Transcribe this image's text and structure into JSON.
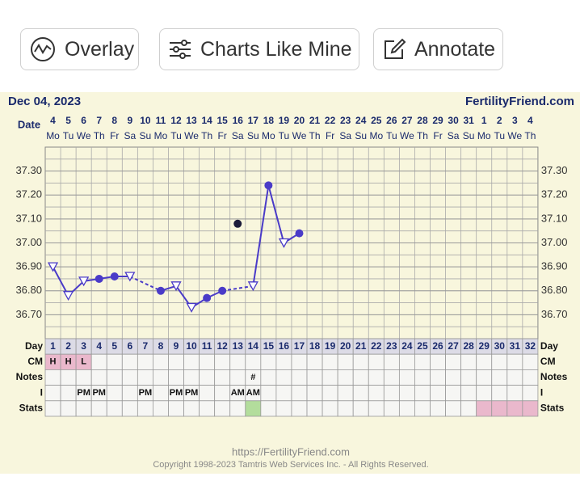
{
  "toolbar": {
    "buttons": [
      "Overlay",
      "Charts Like Mine",
      "Annotate"
    ]
  },
  "chart_data": {
    "type": "line",
    "title": "Dec 04, 2023",
    "brand": "FertilityFriend.com",
    "date_label": "Date",
    "dates": [
      4,
      5,
      6,
      7,
      8,
      9,
      10,
      11,
      12,
      13,
      14,
      15,
      16,
      17,
      18,
      19,
      20,
      21,
      22,
      23,
      24,
      25,
      26,
      27,
      28,
      29,
      30,
      31,
      1,
      2,
      3,
      4
    ],
    "weekdays": [
      "Mo",
      "Tu",
      "We",
      "Th",
      "Fr",
      "Sa",
      "Su",
      "Mo",
      "Tu",
      "We",
      "Th",
      "Fr",
      "Sa",
      "Su",
      "Mo",
      "Tu",
      "We",
      "Th",
      "Fr",
      "Sa",
      "Su",
      "Mo",
      "Tu",
      "We",
      "Th",
      "Fr",
      "Sa",
      "Su",
      "Mo",
      "Tu",
      "We",
      "Th"
    ],
    "day_label": "Day",
    "days": [
      1,
      2,
      3,
      4,
      5,
      6,
      7,
      8,
      9,
      10,
      11,
      12,
      13,
      14,
      15,
      16,
      17,
      18,
      19,
      20,
      21,
      22,
      23,
      24,
      25,
      26,
      27,
      28,
      29,
      30,
      31,
      32
    ],
    "values": [
      36.9,
      36.78,
      36.84,
      36.85,
      36.86,
      36.86,
      null,
      36.8,
      36.82,
      36.73,
      36.77,
      36.8,
      37.08,
      36.82,
      37.24,
      37.0,
      37.04,
      null,
      null,
      null,
      null,
      null,
      null,
      null,
      null,
      null,
      null,
      null,
      null,
      null,
      null,
      null
    ],
    "markers": [
      "triangle",
      "triangle",
      "triangle",
      "dot",
      "dot",
      "triangle",
      null,
      "dot",
      "triangle",
      "triangle",
      "dot",
      "dot",
      "excluded",
      "triangle",
      "dot",
      "triangle",
      "dot",
      null,
      null,
      null,
      null,
      null,
      null,
      null,
      null,
      null,
      null,
      null,
      null,
      null,
      null,
      null
    ],
    "color": "#4a3bc8",
    "excluded_color": "#1c1c3a",
    "ylim": [
      36.6,
      37.4
    ],
    "yticks": [
      {
        "value": 36.7,
        "label": "36.70"
      },
      {
        "value": 36.8,
        "label": "36.80"
      },
      {
        "value": 36.9,
        "label": "36.90"
      },
      {
        "value": 37.0,
        "label": "37.00"
      },
      {
        "value": 37.1,
        "label": "37.10"
      },
      {
        "value": 37.2,
        "label": "37.20"
      },
      {
        "value": 37.3,
        "label": "37.30"
      }
    ],
    "grid": true,
    "rows": [
      {
        "label": "CM",
        "color": "#eab8cc",
        "values": [
          "H",
          "H",
          "L",
          null,
          null,
          null,
          null,
          null,
          null,
          null,
          null,
          null,
          null,
          null,
          null,
          null,
          null,
          null,
          null,
          null,
          null,
          null,
          null,
          null,
          null,
          null,
          null,
          null,
          null,
          null,
          null,
          null
        ]
      },
      {
        "label": "Notes",
        "values": [
          null,
          null,
          null,
          null,
          null,
          null,
          null,
          null,
          null,
          null,
          null,
          null,
          null,
          "#",
          null,
          null,
          null,
          null,
          null,
          null,
          null,
          null,
          null,
          null,
          null,
          null,
          null,
          null,
          null,
          null,
          null,
          null
        ]
      },
      {
        "label": "I",
        "values": [
          null,
          null,
          "PM",
          "PM",
          null,
          null,
          "PM",
          null,
          "PM",
          "PM",
          null,
          null,
          "AM",
          "AM",
          null,
          null,
          null,
          null,
          null,
          null,
          null,
          null,
          null,
          null,
          null,
          null,
          null,
          null,
          null,
          null,
          null,
          null
        ]
      },
      {
        "label": "Stats",
        "colors": [
          null,
          null,
          null,
          null,
          null,
          null,
          null,
          null,
          null,
          null,
          null,
          null,
          null,
          "#b3dd9c",
          null,
          null,
          null,
          null,
          null,
          null,
          null,
          null,
          null,
          null,
          null,
          null,
          null,
          null,
          "#eab8cc",
          "#eab8cc",
          "#eab8cc",
          "#eab8cc"
        ]
      }
    ]
  },
  "footer": {
    "url": "https://FertilityFriend.com",
    "copyright": "Copyright 1998-2023 Tamtris Web Services Inc. - All Rights Reserved."
  }
}
